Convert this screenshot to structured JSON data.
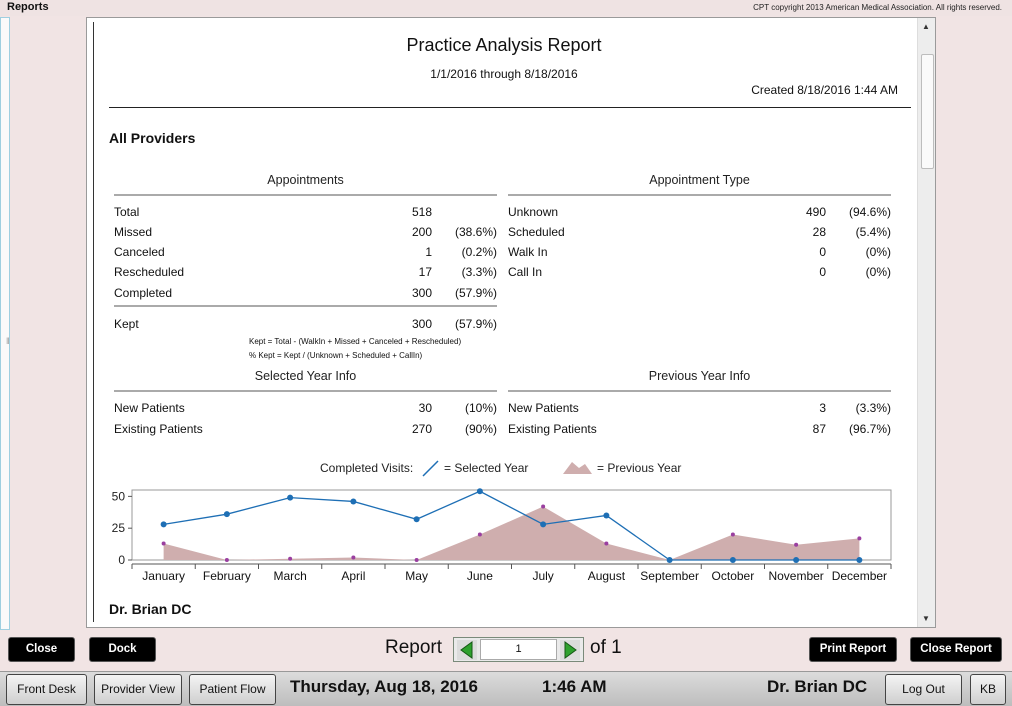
{
  "window": {
    "title": "Reports",
    "copyright": "CPT copyright 2013 American Medical Association. All rights reserved."
  },
  "report": {
    "title": "Practice Analysis Report",
    "date_range": "1/1/2016 through 8/18/2016",
    "created": "Created 8/18/2016 1:44 AM",
    "provider_heading": "All Providers",
    "next_provider_heading": "Dr. Brian DC",
    "appointments": {
      "title": "Appointments",
      "rows": [
        {
          "label": "Total",
          "value": "518",
          "pct": ""
        },
        {
          "label": "Missed",
          "value": "200",
          "pct": "(38.6%)"
        },
        {
          "label": "Canceled",
          "value": "1",
          "pct": "(0.2%)"
        },
        {
          "label": "Rescheduled",
          "value": "17",
          "pct": "(3.3%)"
        },
        {
          "label": "Completed",
          "value": "300",
          "pct": "(57.9%)"
        }
      ],
      "kept": {
        "label": "Kept",
        "value": "300",
        "pct": "(57.9%)"
      },
      "note1": "Kept = Total - (WalkIn + Missed + Canceled + Rescheduled)",
      "note2": "% Kept = Kept / (Unknown + Scheduled + CallIn)"
    },
    "appointment_type": {
      "title": "Appointment Type",
      "rows": [
        {
          "label": "Unknown",
          "value": "490",
          "pct": "(94.6%)"
        },
        {
          "label": "Scheduled",
          "value": "28",
          "pct": "(5.4%)"
        },
        {
          "label": "Walk In",
          "value": "0",
          "pct": "(0%)"
        },
        {
          "label": "Call In",
          "value": "0",
          "pct": "(0%)"
        }
      ]
    },
    "selected_year": {
      "title": "Selected Year Info",
      "rows": [
        {
          "label": "New Patients",
          "value": "30",
          "pct": "(10%)"
        },
        {
          "label": "Existing Patients",
          "value": "270",
          "pct": "(90%)"
        }
      ]
    },
    "previous_year": {
      "title": "Previous Year Info",
      "rows": [
        {
          "label": "New Patients",
          "value": "3",
          "pct": "(3.3%)"
        },
        {
          "label": "Existing Patients",
          "value": "87",
          "pct": "(96.7%)"
        }
      ]
    },
    "legend": {
      "label": "Completed Visits:",
      "selected": "= Selected Year",
      "previous": "= Previous Year"
    }
  },
  "chart_data": {
    "type": "line",
    "categories": [
      "January",
      "February",
      "March",
      "April",
      "May",
      "June",
      "July",
      "August",
      "September",
      "October",
      "November",
      "December"
    ],
    "series": [
      {
        "name": "Selected Year",
        "values": [
          28,
          36,
          49,
          46,
          32,
          54,
          28,
          35,
          0,
          0,
          0,
          0
        ]
      },
      {
        "name": "Previous Year",
        "values": [
          13,
          0,
          1,
          2,
          0,
          20,
          42,
          13,
          0,
          20,
          12,
          17
        ]
      }
    ],
    "yticks": [
      "0",
      "25",
      "50"
    ],
    "ylim": [
      0,
      55
    ],
    "colors": {
      "selected": "#1e6fb5",
      "previous": "#cfaeae",
      "previous_marker": "#9a3fa0"
    }
  },
  "controls": {
    "close": "Close",
    "dock": "Dock",
    "report_label": "Report",
    "page": "1",
    "of_label": "of 1",
    "print_report": "Print Report",
    "close_report": "Close Report"
  },
  "footer": {
    "front_desk": "Front Desk",
    "provider_view": "Provider View",
    "patient_flow": "Patient Flow",
    "date": "Thursday, Aug 18, 2016",
    "time": "1:46 AM",
    "user": "Dr. Brian DC",
    "log_out": "Log Out",
    "kb": "KB"
  }
}
